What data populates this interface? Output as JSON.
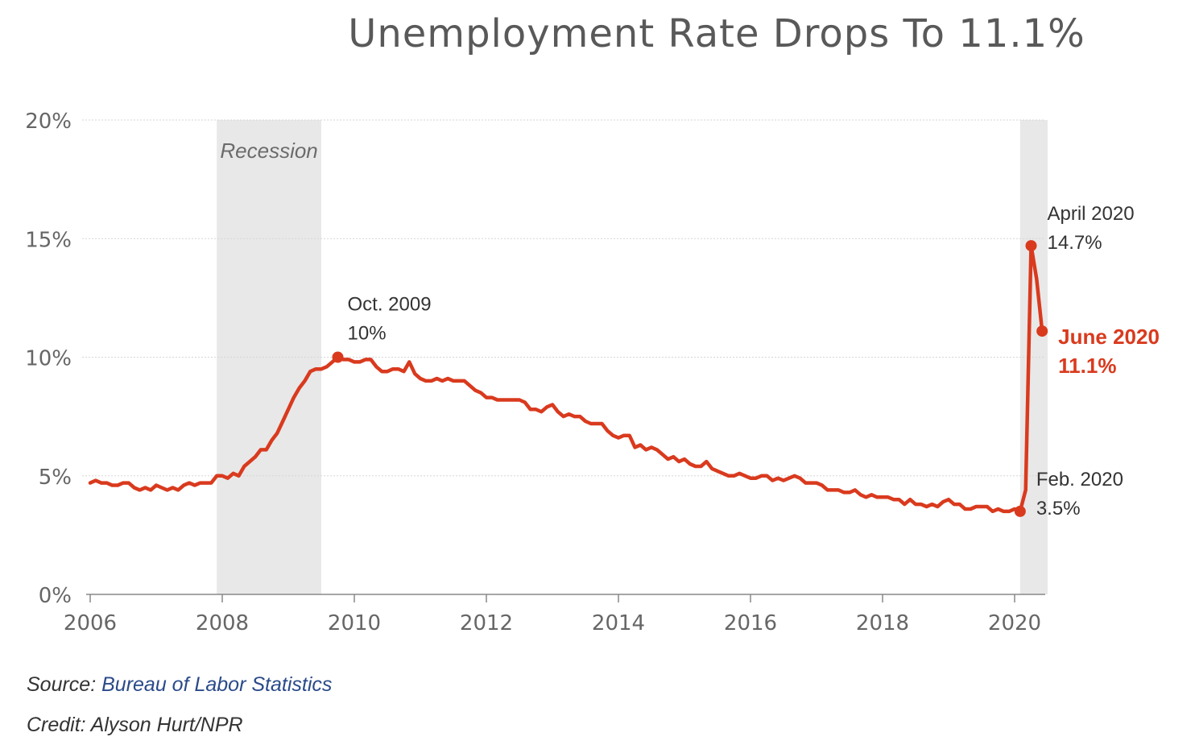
{
  "chart_data": {
    "type": "line",
    "title": "Unemployment Rate Drops To 11.1%",
    "xlabel": "",
    "ylabel": "",
    "x_ticks": [
      "2006",
      "2008",
      "2010",
      "2012",
      "2014",
      "2016",
      "2018",
      "2020"
    ],
    "y_ticks": [
      "0%",
      "5%",
      "10%",
      "15%",
      "20%"
    ],
    "ylim": [
      0,
      20
    ],
    "grid": true,
    "shaded_regions": [
      {
        "label": "Recession",
        "start": "2007-12",
        "end": "2009-06"
      },
      {
        "label": "",
        "start": "2020-02",
        "end": "2020-06"
      }
    ],
    "series": [
      {
        "color": "#d93a1e",
        "x_start": "2006-01",
        "x_step": "month",
        "values": [
          4.7,
          4.8,
          4.7,
          4.7,
          4.6,
          4.6,
          4.7,
          4.7,
          4.5,
          4.4,
          4.5,
          4.4,
          4.6,
          4.5,
          4.4,
          4.5,
          4.4,
          4.6,
          4.7,
          4.6,
          4.7,
          4.7,
          4.7,
          5.0,
          5.0,
          4.9,
          5.1,
          5.0,
          5.4,
          5.6,
          5.8,
          6.1,
          6.1,
          6.5,
          6.8,
          7.3,
          7.8,
          8.3,
          8.7,
          9.0,
          9.4,
          9.5,
          9.5,
          9.6,
          9.8,
          10.0,
          9.9,
          9.9,
          9.8,
          9.8,
          9.9,
          9.9,
          9.6,
          9.4,
          9.4,
          9.5,
          9.5,
          9.4,
          9.8,
          9.3,
          9.1,
          9.0,
          9.0,
          9.1,
          9.0,
          9.1,
          9.0,
          9.0,
          9.0,
          8.8,
          8.6,
          8.5,
          8.3,
          8.3,
          8.2,
          8.2,
          8.2,
          8.2,
          8.2,
          8.1,
          7.8,
          7.8,
          7.7,
          7.9,
          8.0,
          7.7,
          7.5,
          7.6,
          7.5,
          7.5,
          7.3,
          7.2,
          7.2,
          7.2,
          6.9,
          6.7,
          6.6,
          6.7,
          6.7,
          6.2,
          6.3,
          6.1,
          6.2,
          6.1,
          5.9,
          5.7,
          5.8,
          5.6,
          5.7,
          5.5,
          5.4,
          5.4,
          5.6,
          5.3,
          5.2,
          5.1,
          5.0,
          5.0,
          5.1,
          5.0,
          4.9,
          4.9,
          5.0,
          5.0,
          4.8,
          4.9,
          4.8,
          4.9,
          5.0,
          4.9,
          4.7,
          4.7,
          4.7,
          4.6,
          4.4,
          4.4,
          4.4,
          4.3,
          4.3,
          4.4,
          4.2,
          4.1,
          4.2,
          4.1,
          4.1,
          4.1,
          4.0,
          4.0,
          3.8,
          4.0,
          3.8,
          3.8,
          3.7,
          3.8,
          3.7,
          3.9,
          4.0,
          3.8,
          3.8,
          3.6,
          3.6,
          3.7,
          3.7,
          3.7,
          3.5,
          3.6,
          3.5,
          3.5,
          3.6,
          3.5,
          4.4,
          14.7,
          13.3,
          11.1
        ]
      }
    ],
    "annotations": [
      {
        "date": "2009-10",
        "value": 10.0,
        "line1": "Oct. 2009",
        "line2": "10%",
        "color": "#333333"
      },
      {
        "date": "2020-04",
        "value": 14.7,
        "line1": "April 2020",
        "line2": "14.7%",
        "color": "#333333"
      },
      {
        "date": "2020-02",
        "value": 3.5,
        "line1": "Feb. 2020",
        "line2": "3.5%",
        "color": "#333333"
      },
      {
        "date": "2020-06",
        "value": 11.1,
        "line1": "June 2020",
        "line2": "11.1%",
        "color": "#d93a1e"
      }
    ]
  },
  "footer": {
    "source_label": "Source: ",
    "source_link": "Bureau of Labor Statistics",
    "credit": "Credit: Alyson Hurt/NPR"
  }
}
